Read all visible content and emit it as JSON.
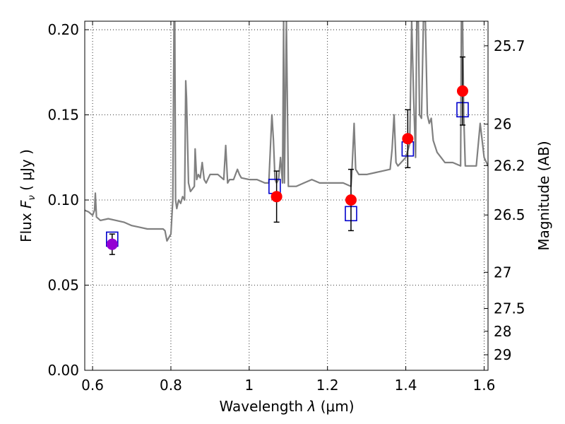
{
  "chart_data": {
    "type": "scatter",
    "xlabel_text": "Wavelength",
    "xlabel_symbol": "λ",
    "xlabel_unit": "(μm)",
    "ylabel_text": "Flux",
    "ylabel_symbol": "F",
    "ylabel_subscript": "ν",
    "ylabel_unit": "( μJy )",
    "y2label": "Magnitude (AB)",
    "xlim": [
      0.58,
      1.61
    ],
    "ylim": [
      0.0,
      0.205
    ],
    "grid": true,
    "x_ticks": [
      0.6,
      0.8,
      1.0,
      1.2,
      1.4,
      1.6
    ],
    "x_tick_labels": [
      "0.6",
      "0.8",
      "1",
      "1.2",
      "1.4",
      "1.6"
    ],
    "y_ticks": [
      0.0,
      0.05,
      0.1,
      0.15,
      0.2
    ],
    "y_tick_labels": [
      "0.00",
      "0.05",
      "0.10",
      "0.15",
      "0.20"
    ],
    "mag_ticks": [
      25.7,
      26,
      26.2,
      26.5,
      27,
      27.5,
      28,
      29
    ],
    "mag_tick_labels": [
      "25.7",
      "26",
      "26.2",
      "26.5",
      "27",
      "27.5",
      "28",
      "29"
    ],
    "colors": {
      "spectrum": "#808080",
      "observed": "#ff0000",
      "observed_first": "#9400d3",
      "model": "#0000cc",
      "errorbar": "#000000"
    },
    "spectrum": {
      "x": [
        0.58,
        0.59,
        0.6,
        0.605,
        0.607,
        0.61,
        0.62,
        0.64,
        0.66,
        0.68,
        0.7,
        0.72,
        0.74,
        0.76,
        0.78,
        0.785,
        0.79,
        0.8,
        0.805,
        0.808,
        0.81,
        0.812,
        0.815,
        0.82,
        0.825,
        0.83,
        0.835,
        0.838,
        0.84,
        0.845,
        0.85,
        0.86,
        0.862,
        0.866,
        0.87,
        0.875,
        0.88,
        0.885,
        0.89,
        0.9,
        0.92,
        0.935,
        0.94,
        0.945,
        0.95,
        0.96,
        0.97,
        0.975,
        0.98,
        1.0,
        1.02,
        1.04,
        1.05,
        1.058,
        1.062,
        1.066,
        1.07,
        1.075,
        1.08,
        1.085,
        1.088,
        1.09,
        1.095,
        1.1,
        1.12,
        1.14,
        1.16,
        1.18,
        1.2,
        1.22,
        1.24,
        1.26,
        1.262,
        1.268,
        1.272,
        1.28,
        1.3,
        1.32,
        1.34,
        1.36,
        1.365,
        1.37,
        1.375,
        1.38,
        1.4,
        1.41,
        1.415,
        1.42,
        1.425,
        1.428,
        1.432,
        1.435,
        1.44,
        1.445,
        1.45,
        1.455,
        1.46,
        1.465,
        1.47,
        1.48,
        1.49,
        1.5,
        1.52,
        1.54,
        1.542,
        1.545,
        1.548,
        1.552,
        1.56,
        1.575,
        1.58,
        1.59,
        1.6,
        1.61
      ],
      "y": [
        0.094,
        0.093,
        0.091,
        0.094,
        0.104,
        0.09,
        0.088,
        0.089,
        0.088,
        0.087,
        0.085,
        0.084,
        0.083,
        0.083,
        0.083,
        0.082,
        0.076,
        0.08,
        0.1,
        0.205,
        0.205,
        0.1,
        0.095,
        0.1,
        0.098,
        0.102,
        0.1,
        0.17,
        0.16,
        0.11,
        0.105,
        0.108,
        0.13,
        0.112,
        0.115,
        0.113,
        0.122,
        0.112,
        0.11,
        0.115,
        0.115,
        0.112,
        0.132,
        0.11,
        0.112,
        0.112,
        0.118,
        0.115,
        0.113,
        0.112,
        0.112,
        0.11,
        0.11,
        0.15,
        0.135,
        0.112,
        0.11,
        0.112,
        0.125,
        0.11,
        0.205,
        0.11,
        0.205,
        0.108,
        0.108,
        0.11,
        0.112,
        0.11,
        0.11,
        0.11,
        0.11,
        0.108,
        0.115,
        0.145,
        0.118,
        0.115,
        0.115,
        0.116,
        0.117,
        0.118,
        0.13,
        0.15,
        0.122,
        0.12,
        0.125,
        0.133,
        0.205,
        0.16,
        0.125,
        0.205,
        0.205,
        0.15,
        0.148,
        0.205,
        0.205,
        0.15,
        0.145,
        0.148,
        0.135,
        0.128,
        0.125,
        0.122,
        0.122,
        0.12,
        0.205,
        0.205,
        0.15,
        0.12,
        0.12,
        0.12,
        0.12,
        0.145,
        0.125,
        0.12
      ]
    },
    "observed": [
      {
        "x": 0.65,
        "y": 0.074,
        "err": 0.006
      },
      {
        "x": 1.07,
        "y": 0.102,
        "err": 0.015
      },
      {
        "x": 1.26,
        "y": 0.1,
        "err": 0.018
      },
      {
        "x": 1.405,
        "y": 0.136,
        "err": 0.017
      },
      {
        "x": 1.545,
        "y": 0.164,
        "err": 0.02
      }
    ],
    "model": [
      {
        "x": 0.65,
        "y": 0.077
      },
      {
        "x": 1.065,
        "y": 0.108
      },
      {
        "x": 1.26,
        "y": 0.092
      },
      {
        "x": 1.405,
        "y": 0.13
      },
      {
        "x": 1.545,
        "y": 0.153
      }
    ]
  }
}
